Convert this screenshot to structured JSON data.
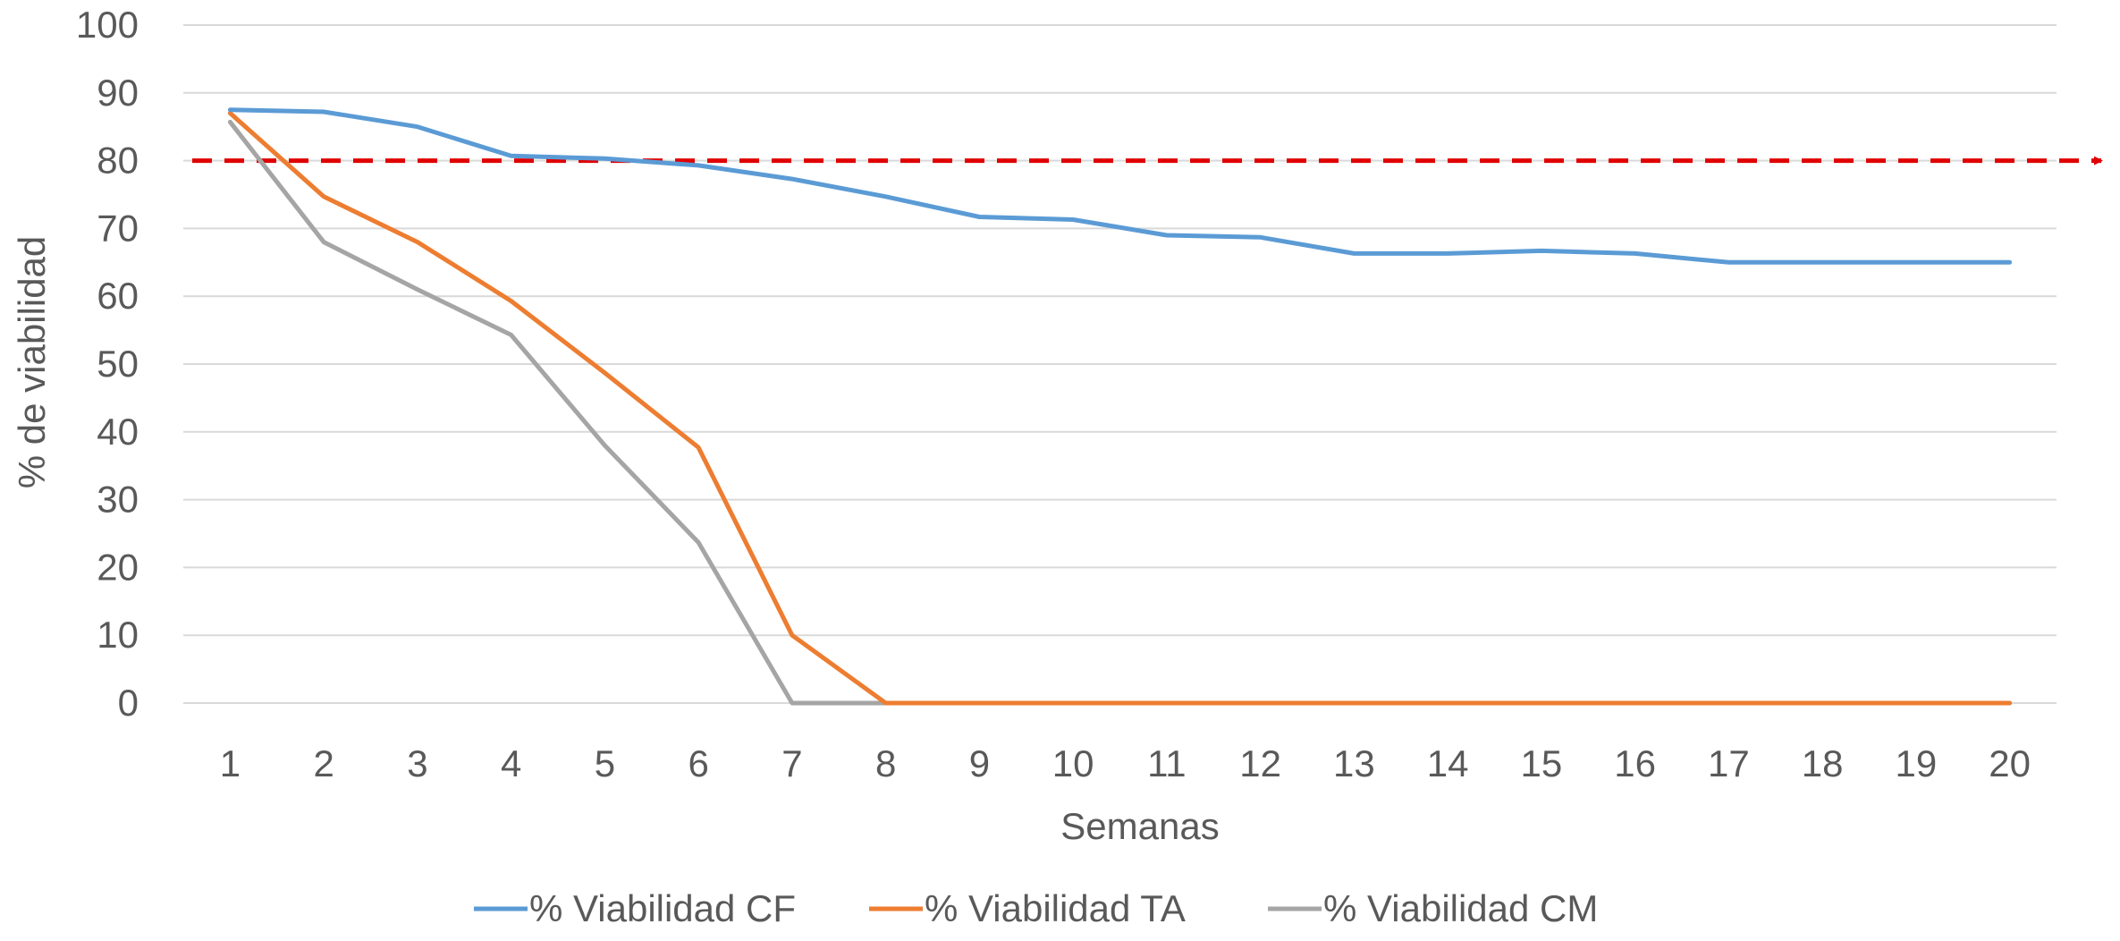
{
  "chart_data": {
    "type": "line",
    "title": "",
    "xlabel": "Semanas",
    "ylabel": "% de viabilidad",
    "x": [
      1,
      2,
      3,
      4,
      5,
      6,
      7,
      8,
      9,
      10,
      11,
      12,
      13,
      14,
      15,
      16,
      17,
      18,
      19,
      20
    ],
    "ylim": [
      0,
      100
    ],
    "yticks": [
      0,
      10,
      20,
      30,
      40,
      50,
      60,
      70,
      80,
      90,
      100
    ],
    "grid": "horizontal",
    "legend_position": "bottom",
    "series": [
      {
        "name": "% Viabilidad CF",
        "color": "#5b9bd5",
        "values": [
          87.5,
          87.2,
          85,
          80.7,
          80.3,
          79.3,
          77.3,
          74.7,
          71.7,
          71.3,
          69,
          68.7,
          66.3,
          66.3,
          66.7,
          66.3,
          65,
          65,
          65,
          65
        ]
      },
      {
        "name": "% Viabilidad TA",
        "color": "#ed7d31",
        "values": [
          87,
          74.7,
          68,
          59.3,
          48.7,
          37.7,
          10,
          0,
          0,
          0,
          0,
          0,
          0,
          0,
          0,
          0,
          0,
          0,
          0,
          0
        ]
      },
      {
        "name": "% Viabilidad CM",
        "color": "#a5a5a5",
        "values": [
          85.7,
          68,
          61,
          54.3,
          38,
          23.7,
          0,
          0,
          0,
          0,
          0,
          0,
          0,
          0,
          0,
          0,
          0,
          0,
          0,
          0
        ]
      }
    ],
    "reference_line": {
      "value": 80,
      "color": "#e00000",
      "style": "dashed"
    }
  }
}
